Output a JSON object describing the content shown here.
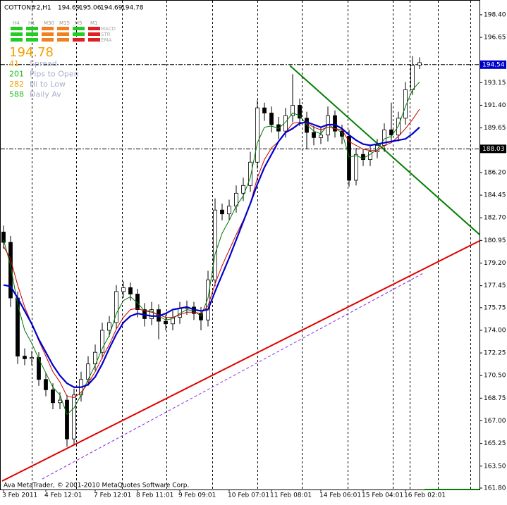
{
  "header": {
    "symbol": "COTTON#2,H1",
    "ohlc": [
      194.69,
      195.06,
      194.69,
      194.78
    ]
  },
  "panel": {
    "timeframes": [
      "H4",
      "H1",
      "M30",
      "M15",
      "M5",
      "M1"
    ],
    "indicators": [
      "MACD",
      "STR",
      "EMA"
    ],
    "price": 194.78,
    "stats": [
      {
        "value": 41,
        "label": "Spread"
      },
      {
        "value": 201,
        "label": "Pips to Open"
      },
      {
        "value": 282,
        "label": "Hi to Low"
      },
      {
        "value": 588,
        "label": "Daily Av"
      }
    ]
  },
  "footer": "Ava MetaTrader, © 2001-2010 MetaQuotes Software Corp.",
  "chart_data": {
    "type": "candlestick",
    "categories": [
      "3 Feb 2011",
      null,
      null,
      null,
      null,
      null,
      "4 Feb 12:01",
      null,
      null,
      null,
      null,
      null,
      null,
      "7 Feb 12:01",
      null,
      null,
      null,
      null,
      null,
      "8 Feb 11:01",
      null,
      null,
      null,
      null,
      null,
      "9 Feb 09:01",
      null,
      null,
      null,
      null,
      null,
      null,
      "10 Feb 07:01",
      null,
      null,
      null,
      null,
      null,
      "11 Feb 08:01",
      null,
      null,
      null,
      null,
      null,
      null,
      "14 Feb 06:01",
      null,
      null,
      null,
      null,
      null,
      "15 Feb 04:01",
      null,
      null,
      null,
      null,
      null,
      "16 Feb 02:01",
      null,
      null
    ],
    "open": [
      181.6,
      180.8,
      176.5,
      172.0,
      171.8,
      171.9,
      170.2,
      169.4,
      168.4,
      168.6,
      165.6,
      169.0,
      170.2,
      171.4,
      172.3,
      174.0,
      174.6,
      177.0,
      177.3,
      176.8,
      175.6,
      174.9,
      175.6,
      174.7,
      174.5,
      175.0,
      175.7,
      175.8,
      175.3,
      174.8,
      177.9,
      183.3,
      183.0,
      183.6,
      184.6,
      185.2,
      187.0,
      191.2,
      190.8,
      189.9,
      189.4,
      190.6,
      191.4,
      190.4,
      189.3,
      188.9,
      189.1,
      190.6,
      189.4,
      189.0,
      185.6,
      187.6,
      187.2,
      187.8,
      188.3,
      189.5,
      189.1,
      190.4,
      192.6,
      194.5
    ],
    "high": [
      182.1,
      181.3,
      177.0,
      172.6,
      172.4,
      172.3,
      170.7,
      169.9,
      169.2,
      169.0,
      169.5,
      170.8,
      172.0,
      172.9,
      174.6,
      175.1,
      177.5,
      177.8,
      177.7,
      177.2,
      176.1,
      176.2,
      176.0,
      175.2,
      175.5,
      176.2,
      176.3,
      176.2,
      175.8,
      178.6,
      184.2,
      183.8,
      184.1,
      185.2,
      185.8,
      187.8,
      191.8,
      191.6,
      191.3,
      190.5,
      191.2,
      193.8,
      191.9,
      190.9,
      189.8,
      189.7,
      191.3,
      191.0,
      189.9,
      189.5,
      188.1,
      188.0,
      188.3,
      188.8,
      190.0,
      191.6,
      190.9,
      193.2,
      195.2,
      195.1
    ],
    "low": [
      180.3,
      175.8,
      171.4,
      171.3,
      171.3,
      169.7,
      168.9,
      167.9,
      167.9,
      165.0,
      165.2,
      168.5,
      169.7,
      170.9,
      171.8,
      173.5,
      174.1,
      176.5,
      176.3,
      175.0,
      174.3,
      174.4,
      173.3,
      174.0,
      174.0,
      174.5,
      175.2,
      174.8,
      174.0,
      174.3,
      177.4,
      182.5,
      182.5,
      183.1,
      184.0,
      184.7,
      186.5,
      190.2,
      189.3,
      188.8,
      188.9,
      190.1,
      189.8,
      188.0,
      188.3,
      188.4,
      188.6,
      188.9,
      188.4,
      185.1,
      185.2,
      186.7,
      186.7,
      187.3,
      187.8,
      188.6,
      188.6,
      189.9,
      192.2,
      194.2
    ],
    "close": [
      180.8,
      176.5,
      172.0,
      171.8,
      171.9,
      170.2,
      169.4,
      168.4,
      168.6,
      165.6,
      169.0,
      170.2,
      171.4,
      172.3,
      174.0,
      174.6,
      177.0,
      177.3,
      176.8,
      175.6,
      174.9,
      175.6,
      174.7,
      174.5,
      175.0,
      175.7,
      175.8,
      175.3,
      174.8,
      177.9,
      183.3,
      183.0,
      183.6,
      184.6,
      185.2,
      187.0,
      191.2,
      190.8,
      189.9,
      189.4,
      190.6,
      191.4,
      190.4,
      189.3,
      188.9,
      189.1,
      190.6,
      189.4,
      189.0,
      185.6,
      187.6,
      187.2,
      187.8,
      188.3,
      189.5,
      189.1,
      190.4,
      192.6,
      194.5,
      194.7
    ],
    "indicators": [
      {
        "color": "#007700",
        "values": [
          181.0,
          179.0,
          176.0,
          174.0,
          173.0,
          171.8,
          170.7,
          169.6,
          169.0,
          167.5,
          168.0,
          169.0,
          170.2,
          171.3,
          172.6,
          173.6,
          175.3,
          176.3,
          176.6,
          176.1,
          175.5,
          175.5,
          175.1,
          174.8,
          174.9,
          175.3,
          175.6,
          175.5,
          175.1,
          176.5,
          179.9,
          181.5,
          182.5,
          183.6,
          184.4,
          185.8,
          188.5,
          189.7,
          189.8,
          189.6,
          190.1,
          190.8,
          190.6,
          189.9,
          189.4,
          189.2,
          189.9,
          189.6,
          189.3,
          187.4,
          187.5,
          187.3,
          187.6,
          188.0,
          188.8,
          189.0,
          189.8,
          191.3,
          192.6,
          193.2
        ]
      },
      {
        "color": "#cc0000",
        "values": [
          180.5,
          179.5,
          177.5,
          175.8,
          174.5,
          173.2,
          172.0,
          170.8,
          170.0,
          168.9,
          168.8,
          169.2,
          169.9,
          170.8,
          171.9,
          172.9,
          174.1,
          175.0,
          175.6,
          175.7,
          175.5,
          175.4,
          175.2,
          175.0,
          175.0,
          175.2,
          175.4,
          175.4,
          175.3,
          175.9,
          177.6,
          179.0,
          180.2,
          181.4,
          182.5,
          183.8,
          185.8,
          187.2,
          188.1,
          188.6,
          189.3,
          190.0,
          190.1,
          190.0,
          189.7,
          189.5,
          189.7,
          189.6,
          189.5,
          188.6,
          188.3,
          188.0,
          187.9,
          187.9,
          188.3,
          188.5,
          189.0,
          189.6,
          190.3,
          191.1
        ]
      },
      {
        "color": "#0000cc",
        "values": [
          177.5,
          177.4,
          176.5,
          175.5,
          174.5,
          173.3,
          172.3,
          171.3,
          170.5,
          169.9,
          169.6,
          169.6,
          169.8,
          170.4,
          171.4,
          172.6,
          173.7,
          174.6,
          175.1,
          175.3,
          175.2,
          175.1,
          175.1,
          175.3,
          175.6,
          175.7,
          175.8,
          175.6,
          175.5,
          175.6,
          177.0,
          178.3,
          179.6,
          181.0,
          182.4,
          183.8,
          185.3,
          186.6,
          187.6,
          188.6,
          189.3,
          189.6,
          190.0,
          190.1,
          189.9,
          189.7,
          189.9,
          189.9,
          189.6,
          189.1,
          188.7,
          188.4,
          188.3,
          188.4,
          188.5,
          188.6,
          188.7,
          188.8,
          189.2,
          189.7
        ]
      }
    ],
    "ylim": [
      161.69,
      199.54
    ],
    "yticks": [
      {
        "value": 198.4,
        "label": "198.40"
      },
      196.65,
      193.15,
      {
        "value": 191.4,
        "label": "191.40"
      },
      189.65,
      {
        "value": 186.2,
        "label": "186.20"
      },
      184.45,
      {
        "value": 182.7,
        "label": "182.70"
      },
      180.95,
      {
        "value": 179.2,
        "label": "179.20"
      },
      177.45,
      175.75,
      {
        "value": 174,
        "label": "174.00"
      },
      172.25,
      {
        "value": 170.5,
        "label": "170.50"
      },
      168.75,
      {
        "value": 167,
        "label": "167.00"
      },
      165.25,
      {
        "value": 163.5,
        "label": "163.50"
      },
      {
        "value": 161.8,
        "label": "161.80"
      }
    ],
    "current_price": 194.54,
    "levels": [
      188.03
    ],
    "bull_color": "#ffffff",
    "bear_color": "#000000"
  }
}
